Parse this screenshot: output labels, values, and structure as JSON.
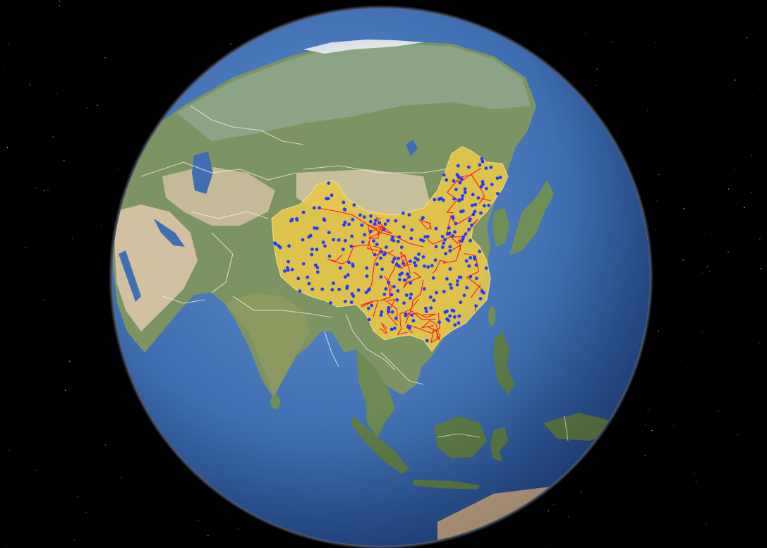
{
  "view": {
    "type": "3d-globe",
    "center_region": "East Asia",
    "background": "starfield"
  },
  "colors": {
    "space": "#000000",
    "ocean": "#3f6fb2",
    "ocean_deep": "#1f4f94",
    "land_green": "#6f8f55",
    "land_desert": "#c9b898",
    "tundra": "#8aa08a",
    "ice": "#f2f4f6",
    "borders": "#f4f1e6",
    "highlight_region": "#e8c74a",
    "station_points": "#1f3cff",
    "rail_lines": "#ff1a1a"
  },
  "layers": [
    {
      "name": "satellite-imagery",
      "visible": true
    },
    {
      "name": "country-borders",
      "visible": true
    },
    {
      "name": "highlighted-country",
      "visible": true
    },
    {
      "name": "point-markers",
      "visible": true
    },
    {
      "name": "line-network",
      "visible": true
    }
  ],
  "markers": {
    "symbol": "dot",
    "approx_count": 300
  }
}
